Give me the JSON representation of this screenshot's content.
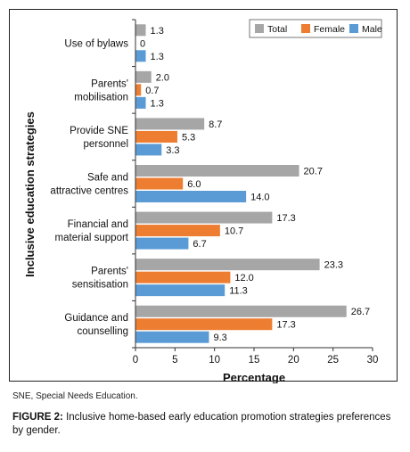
{
  "chart_data": {
    "type": "bar",
    "orientation": "horizontal",
    "categories": [
      "Use of bylaws",
      "Parents' mobilisation",
      "Provide SNE personnel",
      "Safe and attractive centres",
      "Financial and material support",
      "Parents' sensitisation",
      "Guidance and counselling"
    ],
    "category_lines": [
      [
        "Use of bylaws"
      ],
      [
        "Parents'",
        "mobilisation"
      ],
      [
        "Provide SNE",
        "personnel"
      ],
      [
        "Safe and",
        "attractive centres"
      ],
      [
        "Financial and",
        "material support"
      ],
      [
        "Parents'",
        "sensitisation"
      ],
      [
        "Guidance and",
        "counselling"
      ]
    ],
    "series": [
      {
        "name": "Total",
        "color": "#a6a6a6",
        "values": [
          1.3,
          2.0,
          8.7,
          20.7,
          17.3,
          23.3,
          26.7
        ],
        "labels": [
          "1.3",
          "2.0",
          "8.7",
          "20.7",
          "17.3",
          "23.3",
          "26.7"
        ]
      },
      {
        "name": "Female",
        "color": "#ed7d31",
        "values": [
          0,
          0.7,
          5.3,
          6.0,
          10.7,
          12.0,
          17.3
        ],
        "labels": [
          "0",
          "0.7",
          "5.3",
          "6.0",
          "10.7",
          "12.0",
          "17.3"
        ]
      },
      {
        "name": "Male",
        "color": "#5b9bd5",
        "values": [
          1.3,
          1.3,
          3.3,
          14.0,
          6.7,
          11.3,
          9.3
        ],
        "labels": [
          "1.3",
          "1.3",
          "3.3",
          "14.0",
          "6.7",
          "11.3",
          "9.3"
        ]
      }
    ],
    "xlabel": "Percentage",
    "ylabel": "Inclusive education strategies",
    "xlim": [
      0,
      30
    ],
    "xticks": [
      0,
      5,
      10,
      15,
      20,
      25,
      30
    ],
    "grid": false,
    "legend_position": "top-right"
  },
  "footnote": "SNE, Special Needs Education.",
  "caption": {
    "label": "FIGURE 2:",
    "text": " Inclusive home-based early education promotion strategies preferences by gender."
  }
}
